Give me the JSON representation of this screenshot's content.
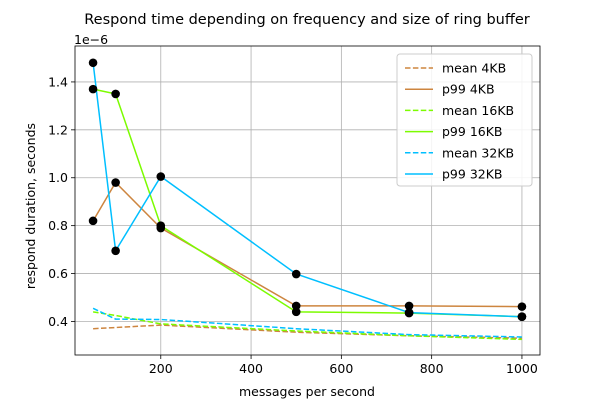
{
  "chart_data": {
    "type": "line",
    "title": "Respond time depending on frequency and size of ring buffer",
    "xlabel": "messages per second",
    "ylabel": "respond duration, seconds",
    "y_offset_label": "1e−6",
    "xlim": [
      10,
      1040
    ],
    "ylim": [
      0.26,
      1.55
    ],
    "y_scale_factor": 1e-06,
    "xticks": [
      200,
      400,
      600,
      800,
      1000
    ],
    "xtick_labels": [
      "200",
      "400",
      "600",
      "800",
      "1000"
    ],
    "yticks": [
      0.4,
      0.6,
      0.8,
      1.0,
      1.2,
      1.4
    ],
    "ytick_labels": [
      "0.4",
      "0.6",
      "0.8",
      "1.0",
      "1.2",
      "1.4"
    ],
    "grid": true,
    "legend_position": "top-right",
    "x": [
      50,
      100,
      200,
      500,
      750,
      1000
    ],
    "series": [
      {
        "name": "mean 4KB",
        "style": "dashed",
        "color": "#cd853f",
        "values": [
          0.37,
          0.375,
          0.385,
          0.355,
          0.34,
          0.33
        ]
      },
      {
        "name": "p99 4KB",
        "style": "solid",
        "color": "#cd853f",
        "values": [
          0.82,
          0.98,
          0.79,
          0.465,
          0.465,
          0.462
        ],
        "markers": true
      },
      {
        "name": "mean 16KB",
        "style": "dashed",
        "color": "#7cfc00",
        "values": [
          0.44,
          0.425,
          0.39,
          0.36,
          0.34,
          0.325
        ]
      },
      {
        "name": "p99 16KB",
        "style": "solid",
        "color": "#7cfc00",
        "values": [
          1.37,
          1.35,
          0.8,
          0.44,
          0.435,
          0.42
        ],
        "markers": true
      },
      {
        "name": "mean 32KB",
        "style": "dashed",
        "color": "#00bfff",
        "values": [
          0.455,
          0.41,
          0.408,
          0.37,
          0.345,
          0.335
        ]
      },
      {
        "name": "p99 32KB",
        "style": "solid",
        "color": "#00bfff",
        "values": [
          1.48,
          0.695,
          1.005,
          0.598,
          0.437,
          0.42
        ],
        "markers": true
      }
    ]
  }
}
